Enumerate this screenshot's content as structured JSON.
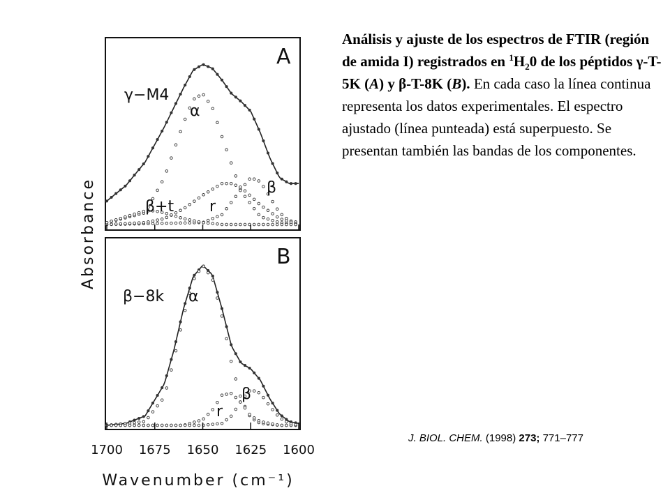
{
  "caption": {
    "bold1": "Análisis y ajuste de los espectros de FTIR (región de amida I) registrados en ",
    "sup": "1",
    "h": "H",
    "sub": "2",
    "bold2": "0 de los péptidos γ-T-5K (",
    "italA": "A",
    "bold3": ") y β-T-8K (",
    "italB": "B",
    "bold4": ").",
    "normal": " En cada caso la línea continua representa los datos experimentales. El espectro ajustado (línea punteada) está superpuesto. Se presentan también las bandas de los componentes."
  },
  "citation": {
    "journal": "J. BIOL. CHEM.",
    "year": " (1998) ",
    "volume": "273;",
    "pages": " 771–777"
  },
  "chart_data": {
    "type": "line",
    "xlabel": "Wavenumber (cm⁻¹)",
    "ylabel": "Absorbance",
    "xlim": [
      1700,
      1600
    ],
    "x_ticks": [
      1700,
      1675,
      1650,
      1625,
      1600
    ],
    "grid": false,
    "panels": [
      {
        "label": "A",
        "sample_label": "γ−M4",
        "component_labels": [
          "α",
          "β",
          "r",
          "β+t"
        ],
        "series": [
          {
            "style": "experimental (solid) + fit (dotted)",
            "x": [
              1700,
              1690,
              1680,
              1670,
              1660,
              1655,
              1650,
              1645,
              1640,
              1635,
              1630,
              1625,
              1620,
              1615,
              1610,
              1605,
              1600
            ],
            "y": [
              0.12,
              0.2,
              0.32,
              0.5,
              0.7,
              0.79,
              0.82,
              0.8,
              0.74,
              0.67,
              0.63,
              0.58,
              0.47,
              0.34,
              0.24,
              0.21,
              0.21
            ]
          },
          {
            "name": "α",
            "x": [
              1700,
              1680,
              1670,
              1660,
              1655,
              1650,
              1645,
              1640,
              1630,
              1620,
              1610,
              1600
            ],
            "y": [
              0.01,
              0.06,
              0.24,
              0.52,
              0.64,
              0.67,
              0.6,
              0.45,
              0.17,
              0.04,
              0.01,
              0.0
            ]
          },
          {
            "name": "β",
            "x": [
              1700,
              1650,
              1640,
              1630,
              1625,
              1620,
              1615,
              1610,
              1605,
              1600
            ],
            "y": [
              0.0,
              0.01,
              0.05,
              0.18,
              0.24,
              0.22,
              0.14,
              0.06,
              0.02,
              0.01
            ]
          },
          {
            "name": "r",
            "x": [
              1700,
              1680,
              1670,
              1660,
              1650,
              1640,
              1635,
              1630,
              1620,
              1610,
              1600
            ],
            "y": [
              0.0,
              0.01,
              0.03,
              0.08,
              0.15,
              0.21,
              0.21,
              0.19,
              0.1,
              0.03,
              0.0
            ]
          },
          {
            "name": "β+t",
            "x": [
              1700,
              1690,
              1680,
              1675,
              1670,
              1660,
              1650,
              1640,
              1620,
              1600
            ],
            "y": [
              0.01,
              0.04,
              0.07,
              0.07,
              0.06,
              0.03,
              0.01,
              0.0,
              0.0,
              0.0
            ]
          }
        ]
      },
      {
        "label": "B",
        "sample_label": "β−8k",
        "component_labels": [
          "α",
          "r",
          "β"
        ],
        "series": [
          {
            "style": "experimental (solid) + fit (dotted)",
            "x": [
              1700,
              1690,
              1680,
              1670,
              1665,
              1660,
              1655,
              1650,
              1645,
              1640,
              1635,
              1630,
              1625,
              1620,
              1615,
              1610,
              1605,
              1600
            ],
            "y": [
              0.0,
              0.01,
              0.05,
              0.22,
              0.4,
              0.62,
              0.79,
              0.85,
              0.8,
              0.62,
              0.42,
              0.33,
              0.3,
              0.24,
              0.14,
              0.06,
              0.02,
              0.01
            ]
          },
          {
            "name": "α",
            "x": [
              1700,
              1680,
              1670,
              1665,
              1660,
              1655,
              1650,
              1645,
              1640,
              1635,
              1630,
              1625,
              1620,
              1610,
              1600
            ],
            "y": [
              0.0,
              0.02,
              0.15,
              0.35,
              0.58,
              0.77,
              0.85,
              0.78,
              0.58,
              0.33,
              0.14,
              0.04,
              0.01,
              0.0,
              0.0
            ]
          },
          {
            "name": "r",
            "x": [
              1700,
              1660,
              1650,
              1645,
              1640,
              1635,
              1630,
              1625,
              1620,
              1610,
              1600
            ],
            "y": [
              0.0,
              0.0,
              0.03,
              0.08,
              0.16,
              0.17,
              0.12,
              0.05,
              0.02,
              0.0,
              0.0
            ]
          },
          {
            "name": "β",
            "x": [
              1700,
              1650,
              1640,
              1635,
              1630,
              1625,
              1620,
              1615,
              1610,
              1605,
              1600
            ],
            "y": [
              0.0,
              0.0,
              0.01,
              0.05,
              0.13,
              0.19,
              0.17,
              0.1,
              0.04,
              0.01,
              0.0
            ]
          }
        ]
      }
    ]
  }
}
